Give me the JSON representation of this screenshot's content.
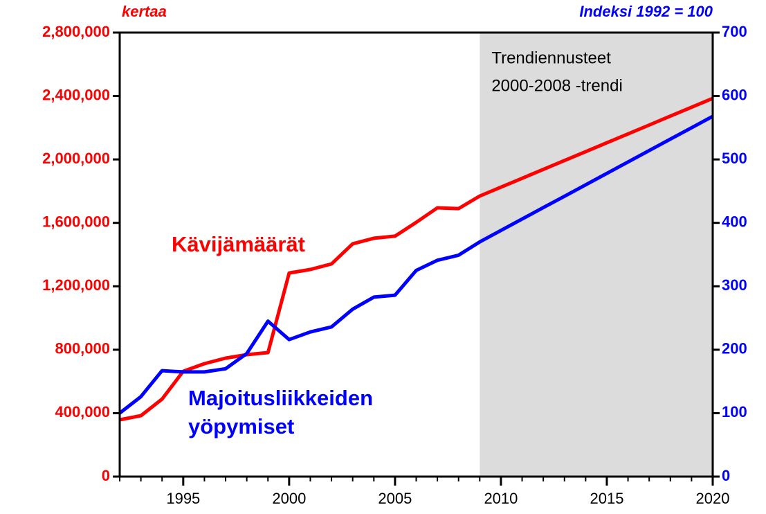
{
  "chart_data": {
    "type": "line",
    "y_label": "kertaa",
    "y2_label": "Indeksi 1992 = 100",
    "annotation": [
      "Trendiennusteet",
      "2000-2008 -trendi"
    ],
    "shade_x": [
      2009,
      2020
    ],
    "x": [
      1992,
      1993,
      1994,
      1995,
      1996,
      1997,
      1998,
      1999,
      2000,
      2001,
      2002,
      2003,
      2004,
      2005,
      2006,
      2007,
      2008,
      2009,
      2010,
      2011,
      2012,
      2013,
      2014,
      2015,
      2016,
      2017,
      2018,
      2019,
      2020
    ],
    "series": [
      {
        "name": "Kävijämäärät",
        "color": "#ff0000",
        "axis": "y",
        "values": [
          358000,
          384000,
          489000,
          664000,
          712000,
          747000,
          769000,
          782000,
          1284000,
          1306000,
          1341000,
          1468000,
          1503000,
          1516000,
          1603000,
          1695000,
          1690000,
          1769000,
          1825000,
          1881000,
          1937000,
          1993000,
          2049000,
          2105000,
          2161000,
          2217000,
          2273000,
          2329000,
          2385000
        ]
      },
      {
        "name": "Majoitusliikkeiden yöpymiset",
        "color": "#0000ff",
        "axis": "y2",
        "values": [
          100,
          126,
          167,
          165,
          165,
          170,
          194,
          245,
          216,
          228,
          236,
          264,
          283,
          286,
          325,
          341,
          349,
          370,
          388,
          406,
          424,
          442,
          460,
          478,
          496,
          514,
          532,
          550,
          568
        ]
      }
    ],
    "xlim": [
      1992,
      2020
    ],
    "xticks": [
      1995,
      2000,
      2005,
      2010,
      2015,
      2020
    ],
    "ylim": [
      0,
      2800000
    ],
    "yticks": [
      0,
      {
        "value": 400000,
        "label": "400,000"
      },
      {
        "value": 800000,
        "label": "800,000"
      },
      {
        "value": 1200000,
        "label": "1,200,000"
      },
      {
        "value": 1600000,
        "label": "1,600,000"
      },
      {
        "value": 2000000,
        "label": "2,000,000"
      },
      {
        "value": 2400000,
        "label": "2,400,000"
      },
      {
        "value": 2800000,
        "label": "2,800,000"
      }
    ],
    "y2lim": [
      0,
      700
    ],
    "y2ticks": [
      0,
      100,
      200,
      300,
      400,
      500,
      600,
      700
    ]
  }
}
